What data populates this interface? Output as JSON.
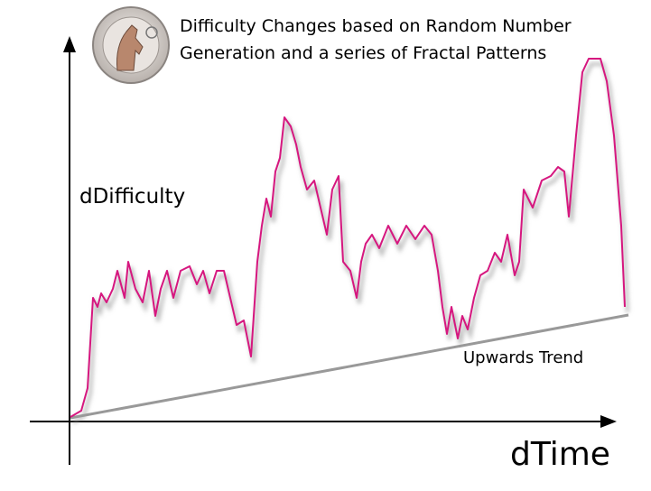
{
  "title": {
    "line1": "Difficulty Changes based on Random Number",
    "line2": "Generation and a series of Fractal Patterns"
  },
  "y_axis_label": "dDifficulty",
  "x_axis_label": "dTime",
  "annotation": "Upwards Trend"
}
